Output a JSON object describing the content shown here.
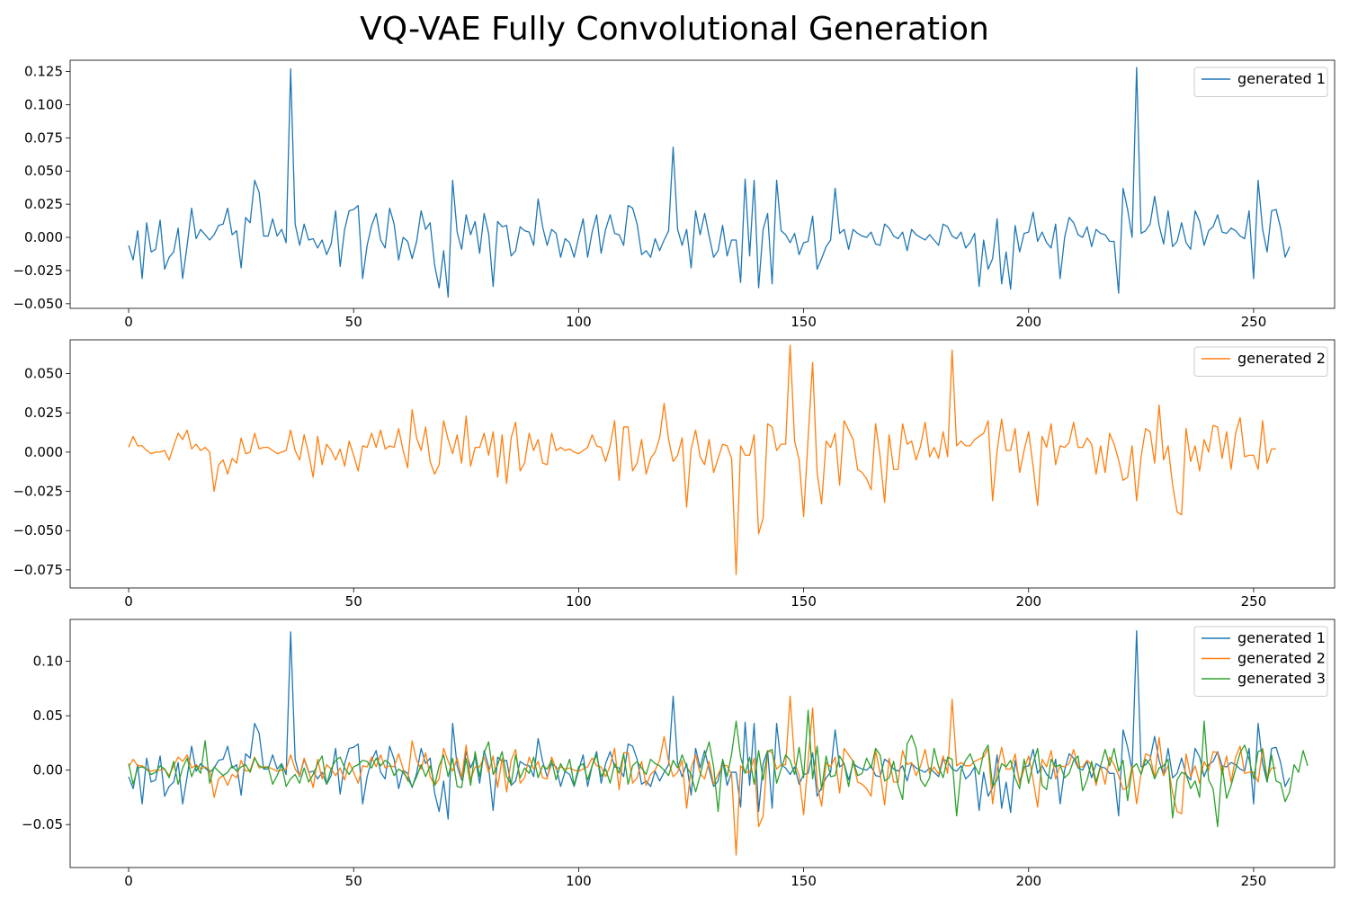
{
  "title": "VQ-VAE Fully Convolutional Generation",
  "colors": {
    "series1": "#1f77b4",
    "series2": "#ff7f0e",
    "series3": "#2ca02c"
  },
  "chart_data": [
    {
      "type": "line",
      "x_start": 0,
      "x_end": 255,
      "xlim": [
        -13,
        268
      ],
      "ylim": [
        -0.0535,
        0.1335
      ],
      "xticks": [
        0,
        50,
        100,
        150,
        200,
        250
      ],
      "yticks": [
        -0.05,
        -0.025,
        0.0,
        0.025,
        0.05,
        0.075,
        0.1,
        0.125
      ],
      "ytick_labels": [
        "−0.050",
        "−0.025",
        "0.000",
        "0.025",
        "0.050",
        "0.075",
        "0.100",
        "0.125"
      ],
      "grid": false,
      "legend": "top-right",
      "series": [
        {
          "name": "generated 1",
          "color": "#1f77b4",
          "values": [
            -0.006,
            -0.017,
            0.005,
            -0.031,
            0.011,
            -0.011,
            -0.009,
            0.013,
            -0.024,
            -0.015,
            -0.011,
            0.007,
            -0.031,
            -0.006,
            0.022,
            -0.001,
            0.006,
            0.002,
            -0.002,
            0.002,
            0.009,
            0.01,
            0.022,
            0.002,
            0.005,
            -0.023,
            0.015,
            0.011,
            0.043,
            0.034,
            0.001,
            0.001,
            0.014,
            0.001,
            0.006,
            -0.004,
            0.127,
            0.01,
            -0.006,
            0.01,
            -0.002,
            -0.001,
            -0.008,
            -0.002,
            -0.013,
            -0.005,
            0.02,
            -0.022,
            0.006,
            0.02,
            0.021,
            0.024,
            -0.031,
            -0.006,
            0.009,
            0.018,
            -0.002,
            -0.008,
            0.022,
            0.01,
            -0.017,
            0.0,
            -0.003,
            -0.016,
            -0.003,
            0.02,
            0.006,
            0.011,
            -0.021,
            -0.038,
            -0.01,
            -0.045,
            0.043,
            0.004,
            -0.009,
            0.017,
            0.002,
            0.012,
            -0.012,
            0.018,
            0.003,
            -0.037,
            0.012,
            0.008,
            0.009,
            -0.014,
            -0.01,
            0.008,
            0.005,
            0.004,
            -0.006,
            0.029,
            0.008,
            -0.006,
            0.006,
            0.003,
            -0.015,
            -0.001,
            -0.004,
            -0.015,
            0.0,
            0.014,
            -0.015,
            0.004,
            0.017,
            -0.012,
            0.006,
            0.017,
            0.003,
            0.002,
            -0.006,
            0.024,
            0.022,
            0.01,
            -0.013,
            -0.01,
            -0.015,
            -0.001,
            -0.01,
            -0.002,
            0.005,
            0.068,
            0.006,
            -0.006,
            0.006,
            -0.023,
            0.02,
            0.002,
            0.018,
            0.001,
            -0.015,
            -0.01,
            0.009,
            -0.014,
            -0.002,
            -0.002,
            -0.034,
            0.044,
            -0.014,
            0.043,
            -0.038,
            0.006,
            0.018,
            -0.035,
            0.043,
            0.005,
            0.002,
            -0.004,
            0.003,
            -0.013,
            -0.004,
            -0.003,
            0.016,
            -0.024,
            -0.016,
            -0.007,
            -0.002,
            0.037,
            0.003,
            0.006,
            -0.009,
            0.006,
            0.003,
            0.001,
            0.0,
            0.004,
            -0.005,
            -0.006,
            0.01,
            0.007,
            0.001,
            -0.001,
            0.004,
            -0.01,
            0.006,
            0.002,
            0.0,
            -0.002,
            0.002,
            -0.002,
            -0.006,
            0.01,
            0.008,
            0.001,
            -0.001,
            0.004,
            -0.008,
            -0.004,
            0.003,
            -0.037,
            -0.002,
            -0.024,
            -0.016,
            0.014,
            -0.035,
            -0.011,
            -0.039,
            0.009,
            -0.011,
            0.003,
            0.004,
            0.019,
            -0.003,
            0.004,
            -0.004,
            -0.008,
            0.01,
            -0.031,
            0.0,
            0.015,
            0.011,
            0.002,
            0.0,
            0.008,
            -0.007,
            0.006,
            0.003,
            0.002,
            -0.003,
            -0.003,
            -0.042,
            0.037,
            0.021,
            0.0,
            0.128,
            0.003,
            0.005,
            0.01,
            0.031,
            0.009,
            -0.005,
            0.02,
            -0.007,
            -0.003,
            0.011,
            -0.004,
            -0.009,
            0.02,
            0.012,
            -0.006,
            0.005,
            0.008,
            0.017,
            0.004,
            0.003,
            0.007,
            0.005,
            0.001,
            -0.001,
            0.02,
            -0.031,
            0.043,
            0.006,
            -0.011,
            0.02,
            0.021,
            0.007,
            -0.015,
            -0.007
          ]
        }
      ]
    },
    {
      "type": "line",
      "x_start": 0,
      "x_end": 255,
      "xlim": [
        -13,
        268
      ],
      "ylim": [
        -0.0865,
        0.0715
      ],
      "xticks": [
        0,
        50,
        100,
        150,
        200,
        250
      ],
      "yticks": [
        -0.075,
        -0.05,
        -0.025,
        0.0,
        0.025,
        0.05
      ],
      "ytick_labels": [
        "−0.075",
        "−0.050",
        "−0.025",
        "0.000",
        "0.025",
        "0.050"
      ],
      "grid": false,
      "legend": "top-right",
      "series": [
        {
          "name": "generated 2",
          "color": "#ff7f0e",
          "values": [
            0.003,
            0.01,
            0.004,
            0.004,
            0.001,
            -0.001,
            0.0,
            0.0,
            0.001,
            -0.005,
            0.004,
            0.012,
            0.008,
            0.014,
            0.002,
            0.005,
            0.001,
            0.003,
            0.0,
            -0.025,
            -0.008,
            -0.005,
            -0.014,
            -0.004,
            -0.007,
            0.009,
            -0.001,
            0.0,
            0.012,
            0.002,
            0.003,
            0.003,
            0.001,
            -0.001,
            0.0,
            0.001,
            0.014,
            0.001,
            -0.005,
            0.011,
            -0.001,
            -0.016,
            0.01,
            -0.008,
            0.005,
            0.001,
            -0.005,
            0.002,
            -0.009,
            0.007,
            -0.002,
            -0.012,
            0.004,
            0.003,
            0.012,
            0.003,
            0.014,
            0.002,
            0.004,
            0.003,
            0.015,
            0.001,
            -0.01,
            0.027,
            0.009,
            0.001,
            0.016,
            -0.006,
            -0.014,
            -0.008,
            0.02,
            0.008,
            -0.001,
            0.011,
            -0.007,
            0.023,
            -0.009,
            0.003,
            0.003,
            0.012,
            -0.002,
            0.013,
            -0.016,
            0.011,
            -0.02,
            0.009,
            0.019,
            -0.012,
            -0.007,
            0.012,
            0.001,
            0.008,
            -0.007,
            -0.008,
            0.012,
            0.001,
            0.003,
            0.001,
            0.002,
            0.0,
            -0.001,
            0.001,
            0.003,
            0.011,
            0.004,
            0.003,
            -0.006,
            0.004,
            0.02,
            -0.018,
            0.016,
            0.016,
            -0.012,
            -0.007,
            0.008,
            -0.014,
            -0.004,
            0.0,
            0.009,
            0.031,
            0.008,
            -0.006,
            -0.002,
            0.009,
            -0.035,
            0.002,
            0.014,
            -0.003,
            -0.008,
            0.008,
            -0.013,
            -0.004,
            0.005,
            0.004,
            -0.004,
            -0.078,
            0.004,
            -0.002,
            -0.002,
            0.011,
            -0.052,
            -0.042,
            0.018,
            0.016,
            0.001,
            0.005,
            0.005,
            0.068,
            0.007,
            -0.005,
            -0.041,
            0.009,
            0.057,
            -0.013,
            -0.033,
            0.007,
            0.003,
            0.012,
            -0.021,
            0.02,
            0.014,
            0.008,
            -0.011,
            -0.013,
            -0.017,
            -0.024,
            0.018,
            -0.003,
            -0.032,
            0.011,
            -0.011,
            -0.011,
            0.018,
            0.005,
            0.007,
            -0.005,
            0.004,
            0.019,
            -0.003,
            0.003,
            -0.004,
            0.013,
            -0.003,
            0.065,
            0.004,
            0.007,
            0.004,
            0.004,
            0.008,
            0.01,
            0.012,
            0.02,
            -0.031,
            0.001,
            0.021,
            0.001,
            0.001,
            0.015,
            -0.013,
            0.001,
            0.013,
            -0.009,
            -0.034,
            0.01,
            0.003,
            0.018,
            -0.008,
            0.004,
            0.003,
            0.006,
            0.019,
            0.003,
            0.003,
            0.009,
            0.005,
            -0.014,
            0.004,
            -0.013,
            0.012,
            0.005,
            -0.005,
            -0.018,
            -0.016,
            0.004,
            -0.031,
            -0.003,
            0.015,
            0.013,
            -0.007,
            0.03,
            -0.005,
            0.004,
            -0.021,
            -0.038,
            -0.04,
            0.015,
            -0.006,
            0.004,
            -0.012,
            0.008,
            0.0,
            0.017,
            0.016,
            -0.004,
            0.013,
            -0.011,
            0.012,
            0.022,
            -0.003,
            -0.002,
            -0.002,
            -0.011,
            0.02,
            -0.007,
            0.002,
            0.002
          ]
        }
      ]
    },
    {
      "type": "line",
      "x_start": 0,
      "x_end": 255,
      "xlim": [
        -13,
        268
      ],
      "ylim": [
        -0.0895,
        0.1385
      ],
      "xticks": [
        0,
        50,
        100,
        150,
        200,
        250
      ],
      "yticks": [
        -0.05,
        0.0,
        0.05,
        0.1
      ],
      "ytick_labels": [
        "−0.05",
        "0.00",
        "0.05",
        "0.10"
      ],
      "grid": false,
      "legend": "top-right",
      "series_ref": [
        "generated 1",
        "generated 2"
      ],
      "series": [
        {
          "name": "generated 1",
          "color": "#1f77b4",
          "ref": 0
        },
        {
          "name": "generated 2",
          "color": "#ff7f0e",
          "ref": 1
        },
        {
          "name": "generated 3",
          "color": "#2ca02c",
          "values": [
            0.006,
            -0.013,
            0.002,
            0.003,
            0.001,
            -0.004,
            -0.002,
            0.004,
            0.001,
            -0.007,
            0.008,
            -0.013,
            0.002,
            0.011,
            -0.006,
            0.004,
            -0.003,
            0.027,
            -0.012,
            0.003,
            -0.001,
            -0.005,
            -0.002,
            0.004,
            -0.001,
            0.003,
            0.005,
            -0.002,
            0.011,
            0.004,
            0.002,
            0.003,
            -0.013,
            -0.005,
            0.005,
            -0.015,
            -0.008,
            -0.004,
            -0.012,
            0.002,
            -0.011,
            -0.004,
            0.006,
            0.013,
            -0.013,
            0.001,
            0.009,
            0.012,
            0.002,
            -0.004,
            0.003,
            0.005,
            0.009,
            0.008,
            0.002,
            0.011,
            0.004,
            0.009,
            0.006,
            -0.005,
            0.001,
            -0.002,
            -0.008,
            -0.015,
            -0.006,
            0.005,
            -0.006,
            0.004,
            -0.014,
            0.004,
            0.014,
            -0.006,
            0.011,
            -0.015,
            -0.016,
            0.011,
            -0.014,
            0.017,
            -0.006,
            0.016,
            0.026,
            -0.004,
            0.005,
            0.017,
            -0.006,
            -0.013,
            0.014,
            -0.007,
            0.002,
            -0.003,
            0.012,
            -0.007,
            0.004,
            0.001,
            0.009,
            -0.009,
            0.006,
            -0.002,
            0.01,
            -0.014,
            0.003,
            0.006,
            -0.009,
            0.004,
            0.014,
            -0.006,
            0.001,
            -0.012,
            0.006,
            -0.003,
            0.015,
            -0.013,
            0.004,
            0.008,
            0.002,
            -0.004,
            0.01,
            0.006,
            0.004,
            0.0,
            -0.005,
            0.009,
            0.002,
            0.014,
            0.003,
            -0.004,
            -0.02,
            -0.005,
            0.012,
            0.026,
            0.003,
            -0.038,
            0.01,
            -0.006,
            0.015,
            0.045,
            0.012,
            -0.003,
            0.012,
            -0.013,
            0.018,
            -0.009,
            0.017,
            0.019,
            -0.012,
            0.001,
            0.014,
            0.009,
            -0.004,
            0.021,
            -0.007,
            0.055,
            -0.008,
            0.022,
            -0.018,
            0.013,
            -0.006,
            -0.005,
            0.013,
            0.006,
            -0.015,
            0.009,
            -0.005,
            -0.003,
            0.011,
            0.002,
            0.02,
            0.014,
            -0.01,
            -0.007,
            0.008,
            -0.014,
            -0.027,
            0.024,
            0.032,
            0.02,
            -0.009,
            -0.015,
            -0.007,
            0.02,
            0.003,
            -0.007,
            0.012,
            0.01,
            -0.042,
            0.0,
            0.009,
            0.015,
            0.004,
            -0.004,
            0.016,
            0.023,
            -0.015,
            -0.009,
            0.006,
            0.003,
            0.009,
            -0.007,
            -0.017,
            0.01,
            -0.012,
            0.006,
            0.02,
            -0.014,
            -0.018,
            0.01,
            0.003,
            0.005,
            -0.007,
            -0.003,
            0.009,
            0.013,
            -0.019,
            -0.009,
            0.008,
            -0.011,
            0.004,
            0.019,
            0.004,
            0.02,
            -0.001,
            0.009,
            -0.028,
            0.002,
            0.006,
            -0.004,
            0.01,
            0.005,
            -0.008,
            0.002,
            0.004,
            0.01,
            -0.044,
            -0.009,
            -0.002,
            -0.004,
            -0.017,
            -0.01,
            -0.025,
            0.045,
            -0.009,
            -0.017,
            -0.052,
            0.004,
            -0.026,
            -0.014,
            0.001,
            0.016,
            0.023,
            0.01,
            -0.008,
            0.017,
            0.019,
            -0.011,
            0.014,
            -0.01,
            -0.012,
            -0.029,
            -0.02,
            0.005,
            -0.002,
            0.018,
            0.004
          ]
        }
      ]
    }
  ]
}
